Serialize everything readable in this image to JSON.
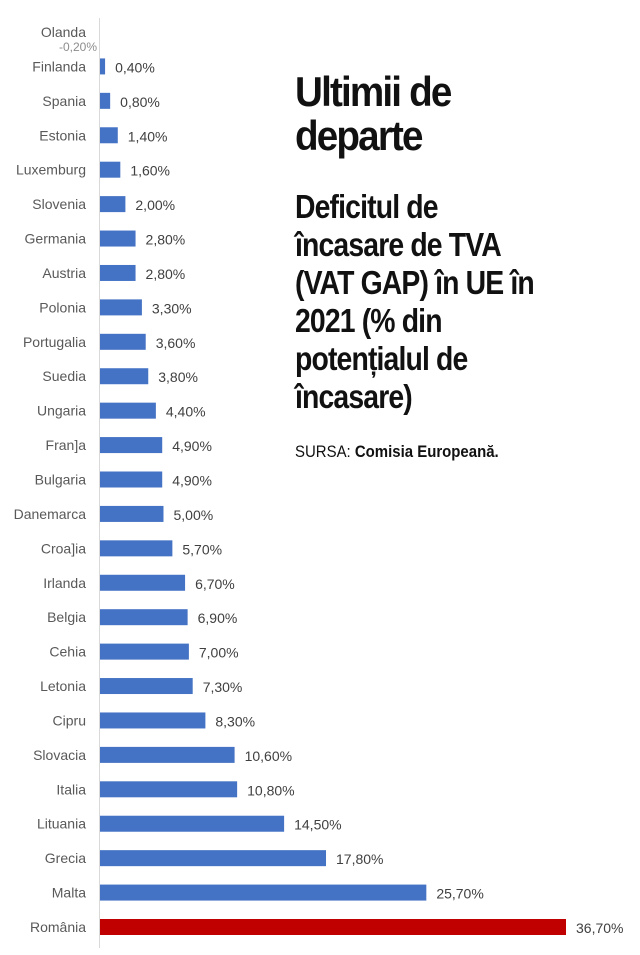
{
  "headline": {
    "line1": "Ultimii de",
    "line2": "departe"
  },
  "subtitle": [
    "Deficitul de",
    "încasare de TVA",
    "(VAT GAP) în UE în",
    "2021 (% din",
    "potențialul de",
    "încasare)"
  ],
  "source": {
    "prefix": "SURSA:",
    "name": "Comisia Europeană."
  },
  "colors": {
    "bar": "#4472c4",
    "highlight": "#c00000",
    "axis": "#d9d9d9"
  },
  "chart_data": {
    "type": "bar",
    "orientation": "horizontal",
    "title": "Deficitul de încasare de TVA (VAT GAP) în UE în 2021 (% din potențialul de încasare)",
    "xlabel": "",
    "ylabel": "",
    "unit": "%",
    "grid": false,
    "highlight_category": "România",
    "categories": [
      "Olanda",
      "Finlanda",
      "Spania",
      "Estonia",
      "Luxemburg",
      "Slovenia",
      "Germania",
      "Austria",
      "Polonia",
      "Portugalia",
      "Suedia",
      "Ungaria",
      "Fran]a",
      "Bulgaria",
      "Danemarca",
      "Croa]ia",
      "Irlanda",
      "Belgia",
      "Cehia",
      "Letonia",
      "Cipru",
      "Slovacia",
      "Italia",
      "Lituania",
      "Grecia",
      "Malta",
      "România"
    ],
    "values": [
      -0.2,
      0.4,
      0.8,
      1.4,
      1.6,
      2.0,
      2.8,
      2.8,
      3.3,
      3.6,
      3.8,
      4.4,
      4.9,
      4.9,
      5.0,
      5.7,
      6.7,
      6.9,
      7.0,
      7.3,
      8.3,
      10.6,
      10.8,
      14.5,
      17.8,
      25.7,
      36.7
    ],
    "value_labels": [
      "-0,20%",
      "0,40%",
      "0,80%",
      "1,40%",
      "1,60%",
      "2,00%",
      "2,80%",
      "2,80%",
      "3,30%",
      "3,60%",
      "3,80%",
      "4,40%",
      "4,90%",
      "4,90%",
      "5,00%",
      "5,70%",
      "6,70%",
      "6,90%",
      "7,00%",
      "7,30%",
      "8,30%",
      "10,60%",
      "10,80%",
      "14,50%",
      "17,80%",
      "25,70%",
      "36,70%"
    ],
    "xlim": [
      0,
      36.7
    ]
  }
}
